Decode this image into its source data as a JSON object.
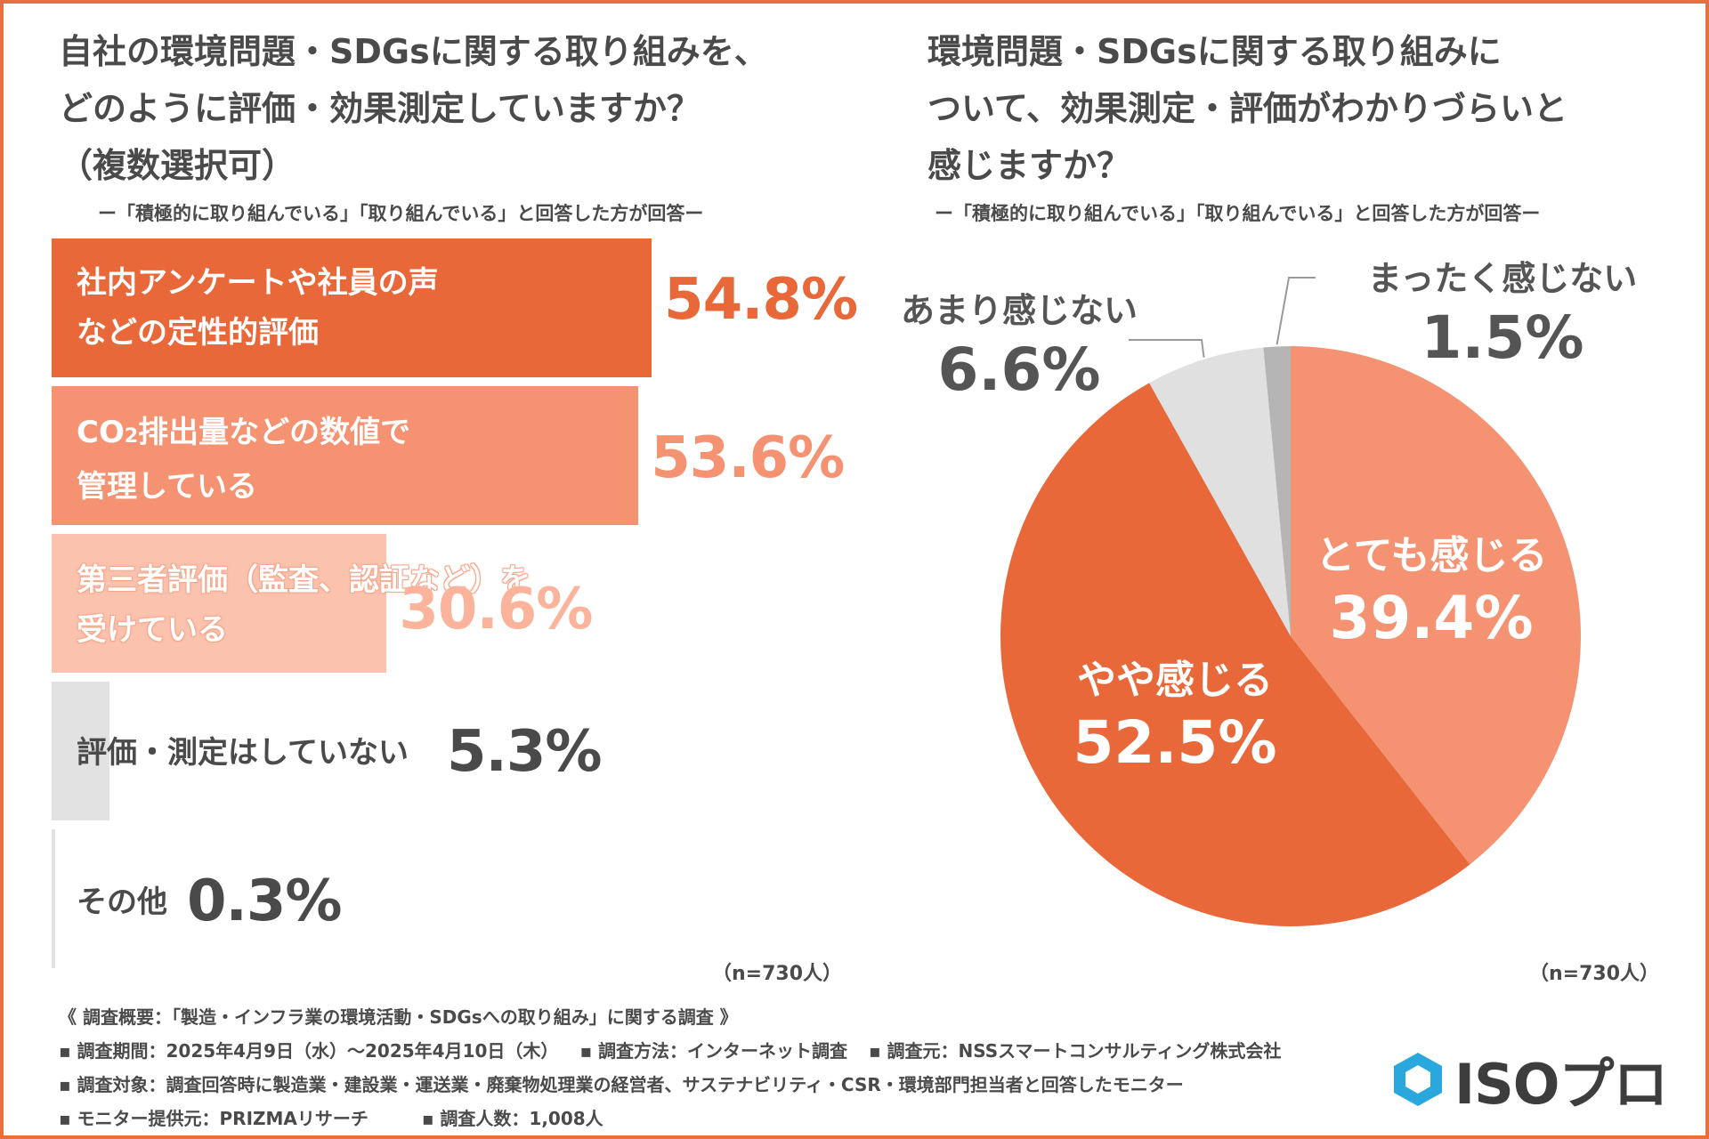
{
  "left_chart": {
    "title_lines": [
      "自社の環境問題・SDGsに関する取り組みを、",
      "どのように評価・効果測定していますか？",
      "（複数選択可）"
    ],
    "subtitle": "ー「積極的に取り組んでいる」「取り組んでいる」と回答した方が回答ー",
    "n_label": "（n=730人）"
  },
  "right_chart": {
    "title_lines": [
      "環境問題・SDGsに関する取り組みに",
      "ついて、効果測定・評価がわかりづらいと",
      "感じますか？"
    ],
    "subtitle": "ー「積極的に取り組んでいる」「取り組んでいる」と回答した方が回答ー",
    "n_label": "（n=730人）"
  },
  "chart_data": [
    {
      "type": "bar",
      "orientation": "horizontal",
      "title": "自社の環境問題・SDGsに関する取り組みを、どのように評価・効果測定していますか？（複数選択可）",
      "categories": [
        [
          "社内アンケートや社員の声",
          "などの定性的評価"
        ],
        [
          "CO₂排出量などの数値で",
          "管理している"
        ],
        [
          "第三者評価（監査、認証など）を",
          "受けている"
        ],
        [
          "評価・測定はしていない"
        ],
        [
          "その他"
        ]
      ],
      "values": [
        54.8,
        53.6,
        30.6,
        5.3,
        0.3
      ],
      "value_labels": [
        "54.8%",
        "53.6%",
        "30.6%",
        "5.3%",
        "0.3%"
      ],
      "colors": [
        "#e8683a",
        "#f59272",
        "#fbc2ae",
        "#e2e2e2",
        "#e2e2e2"
      ],
      "xlim": [
        0,
        100
      ],
      "n": "n=730人"
    },
    {
      "type": "pie",
      "title": "環境問題・SDGsに関する取り組みについて、効果測定・評価がわかりづらいと感じますか？",
      "labels": [
        "とても感じる",
        "やや感じる",
        "あまり感じない",
        "まったく感じない"
      ],
      "values": [
        39.4,
        52.5,
        6.6,
        1.5
      ],
      "value_labels": [
        "39.4%",
        "52.5%",
        "6.6%",
        "1.5%"
      ],
      "colors": [
        "#f59272",
        "#e8683a",
        "#e0e0e0",
        "#b5b5b5"
      ],
      "n": "n=730人"
    }
  ],
  "survey": {
    "heading": "《 調査概要：「製造・インフラ業の環境活動・SDGsへの取り組み」に関する調査 》",
    "period": "▪ 調査期間：2025年4月9日（水）～2025年4月10日（木）",
    "method": "▪ 調査方法：インターネット調査",
    "source": "▪ 調査元：NSSスマートコンサルティング株式会社",
    "target": "▪ 調査対象：調査回答時に製造業・建設業・運送業・廃棄物処理業の経営者、サステナビリティ・CSR・環境部門担当者と回答したモニター",
    "provider": "▪ モニター提供元：PRIZMAリサーチ",
    "count": "▪ 調査人数：1,008人"
  },
  "logo": {
    "text": "ISOプロ",
    "color": "#2aa7dd"
  }
}
